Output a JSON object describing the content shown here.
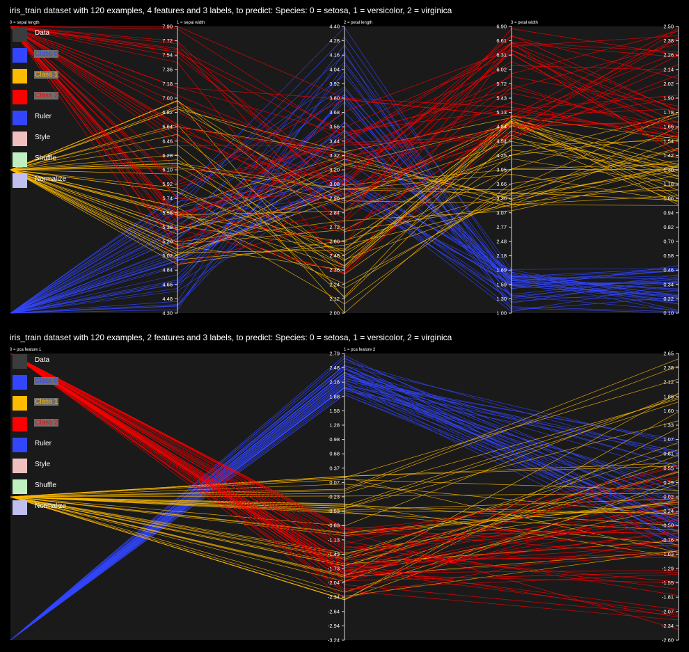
{
  "panels": [
    {
      "title": "iris_train dataset with 120 examples, 4 features and 3 labels, to predict: Species: 0 = setosa, 1 = versicolor, 2 = virginica",
      "legend": [
        {
          "label": "Data",
          "color": "#3c3c3c"
        },
        {
          "label": "Class 0",
          "color": "#3346ff",
          "class_label": true
        },
        {
          "label": "Class 1",
          "color": "#ffbb00",
          "class_label": true
        },
        {
          "label": "Class 2",
          "color": "#ff0000",
          "class_label": true
        },
        {
          "label": "Ruler",
          "color": "#3346ff"
        },
        {
          "label": "Style",
          "color": "#f0c0c0"
        },
        {
          "label": "Shuffle",
          "color": "#c0f0c0"
        },
        {
          "label": "Normalize",
          "color": "#c0c0f0"
        }
      ],
      "chart_data": {
        "type": "parallel-coordinates",
        "class_colors": [
          "#3346ff",
          "#ffbb00",
          "#ff0000"
        ],
        "axes": [
          {
            "label": "0 = sepal length",
            "min": 0,
            "max": 2,
            "ticks": []
          },
          {
            "label": "1 = sepal width",
            "min": 4.3,
            "max": 7.9,
            "ticks": [
              "4.30",
              "4.48",
              "4.66",
              "4.84",
              "5.02",
              "5.20",
              "5.38",
              "5.56",
              "5.74",
              "5.92",
              "6.10",
              "6.28",
              "6.46",
              "6.64",
              "6.82",
              "7.00",
              "7.18",
              "7.36",
              "7.54",
              "7.72",
              "7.90"
            ]
          },
          {
            "label": "2 = petal length",
            "min": 2.0,
            "max": 4.4,
            "ticks": [
              "2.00",
              "2.12",
              "2.24",
              "2.36",
              "2.48",
              "2.60",
              "2.72",
              "2.84",
              "2.96",
              "3.08",
              "3.20",
              "3.32",
              "3.44",
              "3.56",
              "3.68",
              "3.80",
              "3.92",
              "4.04",
              "4.16",
              "4.28",
              "4.40"
            ]
          },
          {
            "label": "3 = petal width",
            "min": 1.0,
            "max": 6.9,
            "ticks": [
              "1.00",
              "1.30",
              "1.59",
              "1.89",
              "2.18",
              "2.48",
              "2.77",
              "3.07",
              "3.36",
              "3.66",
              "3.95",
              "4.25",
              "4.54",
              "4.84",
              "5.13",
              "5.43",
              "5.72",
              "6.02",
              "6.31",
              "6.61",
              "6.90"
            ]
          },
          {
            "label": "",
            "min": 0.1,
            "max": 2.5,
            "ticks": [
              "0.10",
              "0.22",
              "0.34",
              "0.46",
              "0.58",
              "0.70",
              "0.82",
              "0.94",
              "1.06",
              "1.18",
              "1.30",
              "1.42",
              "1.54",
              "1.66",
              "1.78",
              "1.90",
              "2.02",
              "2.14",
              "2.26",
              "2.38",
              "2.50"
            ]
          }
        ],
        "classes": [
          {
            "class": 0,
            "count": 40,
            "ranges": [
              [
                0,
                0
              ],
              [
                4.3,
                5.8
              ],
              [
                2.9,
                4.4
              ],
              [
                1.0,
                1.9
              ],
              [
                0.1,
                0.5
              ]
            ]
          },
          {
            "class": 1,
            "count": 40,
            "ranges": [
              [
                1,
                1
              ],
              [
                4.9,
                7.0
              ],
              [
                2.0,
                3.4
              ],
              [
                3.0,
                5.1
              ],
              [
                1.0,
                1.8
              ]
            ]
          },
          {
            "class": 2,
            "count": 40,
            "ranges": [
              [
                2,
                2
              ],
              [
                4.9,
                7.9
              ],
              [
                2.2,
                3.8
              ],
              [
                4.5,
                6.9
              ],
              [
                1.4,
                2.5
              ]
            ]
          }
        ]
      }
    },
    {
      "title": "iris_train dataset with 120 examples, 2 features and 3 labels, to predict: Species: 0 = setosa, 1 = versicolor, 2 = virginica",
      "legend": [
        {
          "label": "Data",
          "color": "#3c3c3c"
        },
        {
          "label": "Class 0",
          "color": "#3346ff",
          "class_label": true
        },
        {
          "label": "Class 1",
          "color": "#ffbb00",
          "class_label": true
        },
        {
          "label": "Class 2",
          "color": "#ff0000",
          "class_label": true
        },
        {
          "label": "Ruler",
          "color": "#3346ff"
        },
        {
          "label": "Style",
          "color": "#f0c0c0"
        },
        {
          "label": "Shuffle",
          "color": "#c0f0c0"
        },
        {
          "label": "Normalize",
          "color": "#c0c0f0"
        }
      ],
      "chart_data": {
        "type": "parallel-coordinates",
        "class_colors": [
          "#3346ff",
          "#ffbb00",
          "#ff0000"
        ],
        "axes": [
          {
            "label": "0 = pca feature 1",
            "min": 0,
            "max": 2,
            "ticks": []
          },
          {
            "label": "1 = pca feature 2",
            "min": -3.24,
            "max": 2.79,
            "ticks": [
              "-3.24",
              "-2.94",
              "-2.64",
              "-2.34",
              "-2.04",
              "-1.73",
              "-1.43",
              "-1.13",
              "-0.83",
              "-0.53",
              "-0.23",
              "0.07",
              "0.37",
              "0.68",
              "0.98",
              "1.28",
              "1.58",
              "1.88",
              "2.18",
              "2.48",
              "2.79"
            ]
          },
          {
            "label": "",
            "min": -2.6,
            "max": 2.65,
            "ticks": [
              "-2.60",
              "-2.34",
              "-2.07",
              "-1.81",
              "-1.55",
              "-1.29",
              "-1.03",
              "-0.76",
              "-0.50",
              "-0.24",
              "0.02",
              "0.29",
              "0.55",
              "0.81",
              "1.07",
              "1.33",
              "1.60",
              "1.86",
              "2.12",
              "2.38",
              "2.65"
            ]
          }
        ],
        "classes": [
          {
            "class": 0,
            "count": 40,
            "ranges": [
              [
                0,
                0
              ],
              [
                1.9,
                2.79
              ],
              [
                -1.0,
                1.1
              ]
            ]
          },
          {
            "class": 1,
            "count": 40,
            "ranges": [
              [
                1,
                1
              ],
              [
                -2.4,
                0.4
              ],
              [
                -1.2,
                2.65
              ]
            ]
          },
          {
            "class": 2,
            "count": 40,
            "ranges": [
              [
                2,
                2
              ],
              [
                -2.4,
                -0.8
              ],
              [
                -2.6,
                0.6
              ]
            ]
          }
        ]
      }
    }
  ]
}
